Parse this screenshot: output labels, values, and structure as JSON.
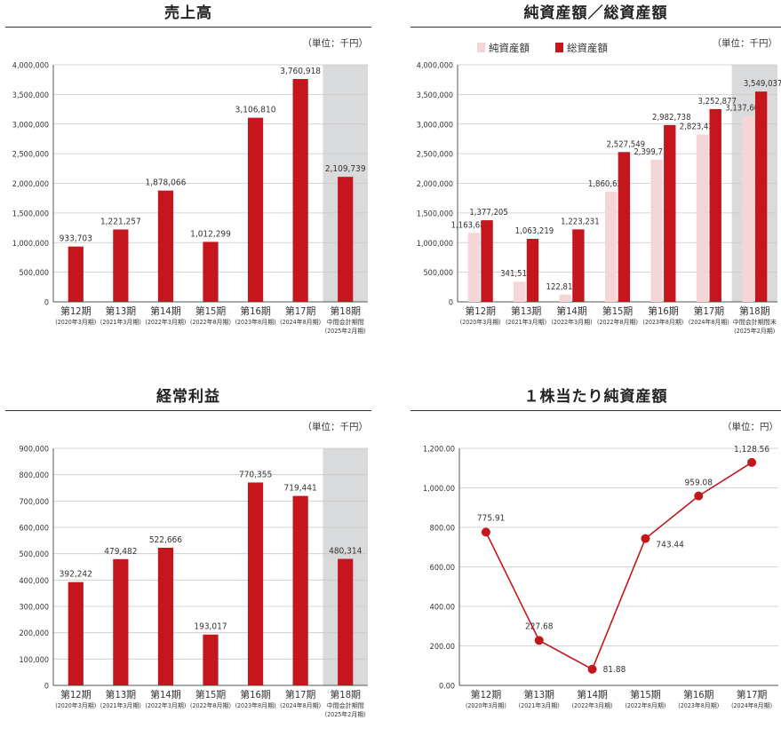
{
  "colors": {
    "bar": "#c4161c",
    "bar_light": "#f6d5d6",
    "grid": "#c8c8c8",
    "axis": "#555555",
    "highlight": "#d9dadc",
    "text": "#333333"
  },
  "chart_data": [
    {
      "id": "sales",
      "type": "bar",
      "title": "売上高",
      "unit": "（単位：千円）",
      "categories": [
        "第12期",
        "第13期",
        "第14期",
        "第15期",
        "第16期",
        "第17期",
        "第18期"
      ],
      "category_sub": [
        [
          "(2020年3月期)"
        ],
        [
          "(2021年3月期)"
        ],
        [
          "(2022年3月期)"
        ],
        [
          "(2022年8月期)"
        ],
        [
          "(2023年8月期)"
        ],
        [
          "(2024年8月期)"
        ],
        [
          "中間会計期間",
          "(2025年2月期)"
        ]
      ],
      "ylim": [
        0,
        4000000
      ],
      "yticks": [
        "0",
        "500,000",
        "1,000,000",
        "1,500,000",
        "2,000,000",
        "2,500,000",
        "3,000,000",
        "3,500,000",
        "4,000,000"
      ],
      "highlight_last": true,
      "series": [
        {
          "values": [
            933703,
            1221257,
            1878066,
            1012299,
            3106810,
            3760918,
            2109739
          ],
          "labels": [
            "933,703",
            "1,221,257",
            "1,878,066",
            "1,012,299",
            "3,106,810",
            "3,760,918",
            "2,109,739"
          ]
        }
      ]
    },
    {
      "id": "assets",
      "type": "bar",
      "title": "純資産額／総資産額",
      "unit": "（単位：千円）",
      "legend": [
        "純資産額",
        "総資産額"
      ],
      "legend_position": "top-left",
      "categories": [
        "第12期",
        "第13期",
        "第14期",
        "第15期",
        "第16期",
        "第17期",
        "第18期"
      ],
      "category_sub": [
        [
          "(2020年3月期)"
        ],
        [
          "(2021年3月期)"
        ],
        [
          "(2022年3月期)"
        ],
        [
          "(2022年8月期)"
        ],
        [
          "(2023年8月期)"
        ],
        [
          "(2024年8月期)"
        ],
        [
          "中間会計期間末",
          "(2025年2月期)"
        ]
      ],
      "ylim": [
        0,
        4000000
      ],
      "yticks": [
        "0",
        "500,000",
        "1,000,000",
        "1,500,000",
        "2,000,000",
        "2,500,000",
        "3,000,000",
        "3,500,000",
        "4,000,000"
      ],
      "highlight_last": true,
      "series": [
        {
          "name": "純資産額",
          "values": [
            1163689,
            341517,
            122816,
            1860625,
            2399718,
            2823430,
            3137604
          ],
          "labels": [
            "1,163,689",
            "341,517",
            "122,816",
            "1,860,625",
            "2,399,718",
            "2,823,430",
            "3,137,604"
          ]
        },
        {
          "name": "総資産額",
          "values": [
            1377205,
            1063219,
            1223231,
            2527549,
            2982738,
            3252877,
            3549037
          ],
          "labels": [
            "1,377,205",
            "1,063,219",
            "1,223,231",
            "2,527,549",
            "2,982,738",
            "3,252,877",
            "3,549,037"
          ]
        }
      ]
    },
    {
      "id": "ordinary",
      "type": "bar",
      "title": "経常利益",
      "unit": "（単位：千円）",
      "categories": [
        "第12期",
        "第13期",
        "第14期",
        "第15期",
        "第16期",
        "第17期",
        "第18期"
      ],
      "category_sub": [
        [
          "(2020年3月期)"
        ],
        [
          "(2021年3月期)"
        ],
        [
          "(2022年3月期)"
        ],
        [
          "(2022年8月期)"
        ],
        [
          "(2023年8月期)"
        ],
        [
          "(2024年8月期)"
        ],
        [
          "中間会計期間",
          "(2025年2月期)"
        ]
      ],
      "ylim": [
        0,
        900000
      ],
      "yticks": [
        "0",
        "100,000",
        "200,000",
        "300,000",
        "400,000",
        "500,000",
        "600,000",
        "700,000",
        "800,000",
        "900,000"
      ],
      "highlight_last": true,
      "series": [
        {
          "values": [
            392242,
            479482,
            522666,
            193017,
            770355,
            719441,
            480314
          ],
          "labels": [
            "392,242",
            "479,482",
            "522,666",
            "193,017",
            "770,355",
            "719,441",
            "480,314"
          ]
        }
      ]
    },
    {
      "id": "pershare",
      "type": "line",
      "title": "１株当たり純資産額",
      "unit": "（単位：円）",
      "categories": [
        "第12期",
        "第13期",
        "第14期",
        "第15期",
        "第16期",
        "第17期"
      ],
      "category_sub": [
        [
          "(2020年3月期)"
        ],
        [
          "(2021年3月期)"
        ],
        [
          "(2022年3月期)"
        ],
        [
          "(2022年8月期)"
        ],
        [
          "(2023年8月期)"
        ],
        [
          "(2024年8月期)"
        ]
      ],
      "ylim": [
        0,
        1200
      ],
      "yticks": [
        "0.00",
        "200.00",
        "400.00",
        "600.00",
        "800.00",
        "1,000.00",
        "1,200.00"
      ],
      "highlight_last": false,
      "series": [
        {
          "values": [
            775.91,
            227.68,
            81.88,
            743.44,
            959.08,
            1128.56
          ],
          "labels": [
            "775.91",
            "227.68",
            "81.88",
            "743.44",
            "959.08",
            "1,128.56"
          ]
        }
      ]
    }
  ]
}
